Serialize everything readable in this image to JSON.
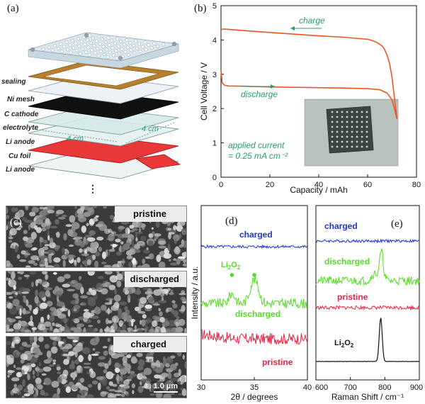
{
  "panel_a": {
    "label": "(a)",
    "layers": [
      "sealing",
      "Ni mesh",
      "C cathode",
      "electrolyte",
      "Li anode",
      "Cu foil",
      "Li anode"
    ],
    "dim_front": "4 cm",
    "dim_side": "4 cm",
    "ellipsis": "⋮"
  },
  "panel_b": {
    "label": "(b)",
    "charge_label": "charge",
    "discharge_label": "discharge",
    "applied_current_line1": "applied current",
    "applied_current_line2": "= 0.25 mA cm⁻²"
  },
  "panel_c": {
    "label": "(c)",
    "tags": [
      "pristine",
      "discharged",
      "charged"
    ],
    "scalebar": "1.0 µm"
  },
  "panel_d": {
    "label": "(d)",
    "charged": "charged",
    "discharged": "discharged",
    "pristine": "pristine",
    "li2o2_main": "Li",
    "li2o2_sub1": "2",
    "li2o2_mid": "O",
    "li2o2_sub2": "2"
  },
  "panel_e": {
    "label": "(e)",
    "charged": "charged",
    "discharged": "discharged",
    "pristine": "pristine",
    "li2o2_main": "Li",
    "li2o2_sub1": "2",
    "li2o2_mid": "O",
    "li2o2_sub2": "2"
  },
  "colors": {
    "charged": "#2233cc",
    "discharged": "#55dd22",
    "pristine": "#ee2244",
    "li2o2": "#111111",
    "curve_b": "#ee5522",
    "teal_text": "#2a9a78"
  },
  "chart_data": [
    {
      "type": "line",
      "title": "",
      "xlabel": "Capacity / mAh",
      "ylabel": "Cell Voltage / V",
      "xlim": [
        0,
        80
      ],
      "ylim": [
        0,
        5
      ],
      "xticks": [
        0,
        20,
        40,
        60,
        80
      ],
      "yticks": [
        0,
        1,
        2,
        3,
        4,
        5
      ],
      "series": [
        {
          "x": [
            0,
            1,
            5,
            10,
            20,
            30,
            40,
            50,
            55,
            60,
            62,
            64,
            66,
            67,
            68,
            69,
            70,
            71,
            72
          ],
          "y": [
            4.3,
            4.32,
            4.3,
            4.27,
            4.22,
            4.17,
            4.12,
            4.08,
            4.05,
            4.02,
            3.98,
            3.92,
            3.82,
            3.72,
            3.55,
            3.3,
            2.9,
            2.3,
            1.7
          ]
        },
        {
          "x": [
            0,
            0.5,
            1.5,
            3,
            10,
            20,
            30,
            40,
            50,
            60,
            65,
            68,
            70,
            71,
            72
          ],
          "y": [
            3.1,
            2.75,
            2.68,
            2.66,
            2.65,
            2.63,
            2.62,
            2.61,
            2.6,
            2.58,
            2.55,
            2.45,
            2.25,
            2.0,
            1.7
          ]
        }
      ]
    },
    {
      "type": "line",
      "xlabel": "2θ / degrees",
      "ylabel": "Intensity / a.u.",
      "xlim": [
        30,
        40
      ],
      "xticks": [
        30,
        35,
        40
      ],
      "series": [
        {
          "name": "charged",
          "x": [
            30,
            40
          ],
          "y": [
            0,
            0
          ]
        },
        {
          "name": "discharged",
          "x": [
            30,
            32,
            33,
            34,
            35,
            36,
            37,
            40
          ],
          "y": [
            0,
            0.05,
            0.35,
            0.15,
            0.6,
            0.25,
            0.05,
            0
          ]
        },
        {
          "name": "pristine",
          "x": [
            30,
            40
          ],
          "y": [
            0,
            0
          ]
        }
      ],
      "markers": [
        {
          "x": 32.9
        },
        {
          "x": 35.0
        }
      ]
    },
    {
      "type": "line",
      "xlabel": "Raman Shift / cm⁻¹",
      "xlim": [
        600,
        900
      ],
      "xticks": [
        600,
        700,
        800,
        900
      ],
      "series": [
        {
          "name": "charged",
          "x": [
            600,
            900
          ],
          "y": [
            0,
            0
          ]
        },
        {
          "name": "discharged",
          "x": [
            600,
            760,
            780,
            790,
            800,
            820,
            900
          ],
          "y": [
            0,
            0.1,
            0.45,
            0.9,
            0.4,
            0.1,
            0
          ]
        },
        {
          "name": "pristine",
          "x": [
            600,
            900
          ],
          "y": [
            0,
            0
          ]
        },
        {
          "name": "Li2O2",
          "x": [
            600,
            770,
            780,
            785,
            790,
            795,
            800,
            810,
            900
          ],
          "y": [
            0,
            0.02,
            0.3,
            0.8,
            1.0,
            0.8,
            0.3,
            0.02,
            0
          ]
        }
      ]
    }
  ]
}
